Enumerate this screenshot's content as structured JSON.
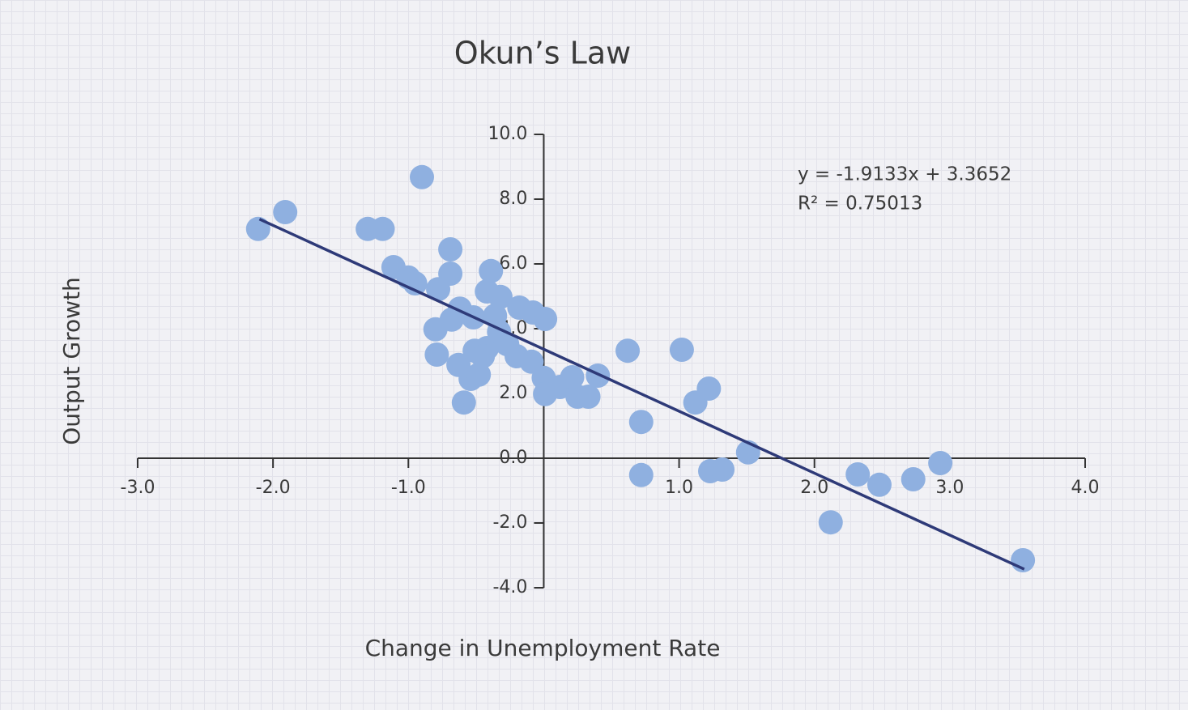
{
  "chart_data": {
    "type": "scatter",
    "title": "Okun’s Law",
    "x_label": "Change in Unemployment Rate",
    "y_label": "Output Growth",
    "color": "#8fb0e0",
    "xlim": [
      -3,
      4
    ],
    "ylim": [
      -4,
      10
    ],
    "xticks": [
      {
        "value": -3,
        "label": "-3.0"
      },
      {
        "value": -2,
        "label": "-2.0"
      },
      {
        "value": -1,
        "label": "-1.0"
      },
      {
        "value": 1,
        "label": "1.0"
      },
      {
        "value": 2,
        "label": "2.0"
      },
      {
        "value": 3,
        "label": "3.0"
      },
      {
        "value": 4,
        "label": "4.0"
      }
    ],
    "yticks": [
      {
        "value": -4,
        "label": "-4.0"
      },
      {
        "value": -2,
        "label": "-2.0"
      },
      {
        "value": 0,
        "label": "0.0"
      },
      {
        "value": 2,
        "label": "2.0"
      },
      {
        "value": 4,
        "label": "4.0"
      },
      {
        "value": 6,
        "label": "6.0"
      },
      {
        "value": 8,
        "label": "8.0"
      },
      {
        "value": 10,
        "label": "10.0"
      }
    ],
    "x": [
      -2.11,
      -1.91,
      -0.9,
      -1.3,
      -1.19,
      -1.11,
      -1.0,
      -0.95,
      -0.78,
      -0.69,
      -0.69,
      -0.39,
      -0.42,
      -0.32,
      -0.62,
      -0.68,
      -0.52,
      -0.18,
      -0.08,
      0.01,
      -0.8,
      -0.79,
      -0.63,
      -0.51,
      -0.42,
      -0.33,
      -0.27,
      -0.2,
      -0.09,
      -0.54,
      -0.48,
      -0.59,
      0.0,
      0.01,
      0.12,
      0.21,
      0.25,
      0.33,
      0.4,
      0.62,
      0.72,
      0.72,
      1.02,
      1.12,
      1.22,
      1.23,
      1.32,
      1.51,
      2.12,
      2.32,
      2.48,
      2.73,
      2.93,
      3.54,
      -0.36,
      -0.45
    ],
    "values": [
      7.08,
      7.6,
      8.68,
      7.08,
      7.08,
      5.9,
      5.58,
      5.4,
      5.22,
      6.45,
      5.7,
      5.78,
      5.15,
      4.98,
      4.62,
      4.28,
      4.35,
      4.65,
      4.5,
      4.3,
      3.98,
      3.2,
      2.88,
      3.32,
      3.4,
      3.9,
      3.52,
      3.15,
      2.98,
      2.45,
      2.58,
      1.72,
      2.48,
      1.98,
      2.2,
      2.5,
      1.9,
      1.9,
      2.55,
      3.32,
      1.12,
      -0.52,
      3.35,
      1.72,
      2.15,
      -0.4,
      -0.35,
      0.18,
      -1.98,
      -0.5,
      -0.82,
      -0.65,
      -0.15,
      -3.15,
      4.4,
      3.15
    ],
    "trendline": {
      "color": "#2e3a78",
      "slope": -1.9133,
      "intercept": 3.3652,
      "x_start": -2.1,
      "x_end": 3.55,
      "equation": "y = -1.9133x + 3.3652",
      "r_squared": "R² = 0.75013"
    }
  }
}
